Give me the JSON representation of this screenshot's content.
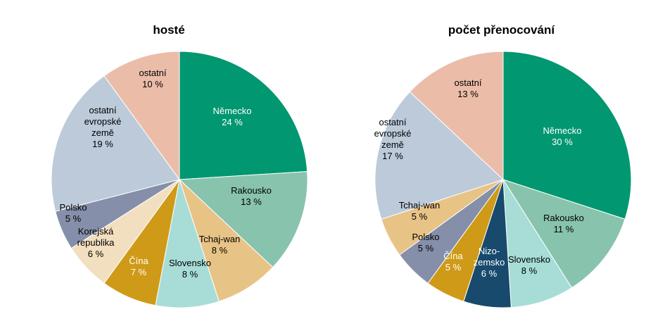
{
  "chart_data": [
    {
      "type": "pie",
      "title": "hosté",
      "colors": {
        "Německo": "#019770",
        "Rakousko": "#88c3ad",
        "Tchaj-wan": "#e8c386",
        "Slovensko": "#a7ddd6",
        "Čína": "#cf9a18",
        "Korejská republika": "#f2dfbf",
        "Polsko": "#858fa9",
        "ostatní evropské země": "#bccada",
        "ostatní": "#ebbda9"
      },
      "slices": [
        {
          "label": "Německo",
          "value": 24,
          "value_label": "24 %",
          "label_color": "#ffffff"
        },
        {
          "label": "Rakousko",
          "value": 13,
          "value_label": "13 %",
          "label_color": "#000000"
        },
        {
          "label": "Tchaj-wan",
          "value": 8,
          "value_label": "8 %",
          "label_color": "#000000"
        },
        {
          "label": "Slovensko",
          "value": 8,
          "value_label": "8 %",
          "label_color": "#000000"
        },
        {
          "label": "Čína",
          "value": 7,
          "value_label": "7 %",
          "label_color": "#ffffff"
        },
        {
          "label": "Korejská republika",
          "value": 6,
          "value_label": "6 %",
          "label_color": "#000000"
        },
        {
          "label": "Polsko",
          "value": 5,
          "value_label": "5 %",
          "label_color": "#000000"
        },
        {
          "label": "ostatní evropské země",
          "value": 19,
          "value_label": "19 %",
          "label_color": "#000000"
        },
        {
          "label": "ostatní",
          "value": 10,
          "value_label": "10 %",
          "label_color": "#000000"
        }
      ]
    },
    {
      "type": "pie",
      "title": "počet přenocování",
      "colors": {
        "Německo": "#019770",
        "Rakousko": "#88c3ad",
        "Slovensko": "#a7ddd6",
        "Nizozemsko": "#174a6c",
        "Čína": "#cf9a18",
        "Polsko": "#858fa9",
        "Tchaj-wan": "#e8c386",
        "ostatní evropské země": "#bccada",
        "ostatní": "#ebbda9"
      },
      "slices": [
        {
          "label": "Německo",
          "value": 30,
          "value_label": "30 %",
          "label_color": "#ffffff"
        },
        {
          "label": "Rakousko",
          "value": 11,
          "value_label": "11 %",
          "label_color": "#000000"
        },
        {
          "label": "Slovensko",
          "value": 8,
          "value_label": "8 %",
          "label_color": "#000000"
        },
        {
          "label": "Nizozemsko",
          "value": 6,
          "value_label": "6 %",
          "label_color": "#ffffff"
        },
        {
          "label": "Čína",
          "value": 5,
          "value_label": "5 %",
          "label_color": "#ffffff"
        },
        {
          "label": "Polsko",
          "value": 5,
          "value_label": "5 %",
          "label_color": "#000000"
        },
        {
          "label": "Tchaj-wan",
          "value": 5,
          "value_label": "5 %",
          "label_color": "#000000"
        },
        {
          "label": "ostatní evropské země",
          "value": 17,
          "value_label": "17 %",
          "label_color": "#000000"
        },
        {
          "label": "ostatní",
          "value": 13,
          "value_label": "13 %",
          "label_color": "#000000"
        }
      ]
    }
  ]
}
